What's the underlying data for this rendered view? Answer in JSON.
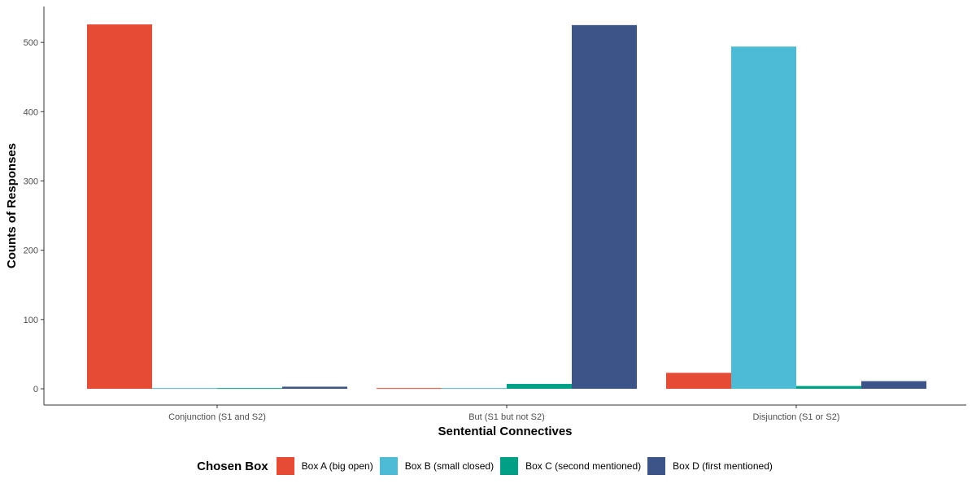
{
  "chart_data": {
    "type": "bar",
    "title": "",
    "xlabel": "Sentential Connectives",
    "ylabel": "Counts of Responses",
    "categories": [
      "Conjunction (S1 and S2)",
      "But (S1 but not S2)",
      "Disjunction (S1 or S2)"
    ],
    "series": [
      {
        "name": "Box A (big open)",
        "color": "#E64B35",
        "values": [
          526,
          1,
          23
        ]
      },
      {
        "name": "Box B (small closed)",
        "color": "#4DBBD5",
        "values": [
          1,
          1,
          494
        ]
      },
      {
        "name": "Box C (second mentioned)",
        "color": "#00A087",
        "values": [
          1,
          7,
          4
        ]
      },
      {
        "name": "Box D (first mentioned)",
        "color": "#3C5488",
        "values": [
          3,
          525,
          11
        ]
      }
    ],
    "ylim": [
      0,
      526
    ],
    "yticks": [
      0,
      100,
      200,
      300,
      400,
      500
    ],
    "grid": false,
    "legend": {
      "title": "Chosen Box",
      "position": "bottom"
    }
  }
}
